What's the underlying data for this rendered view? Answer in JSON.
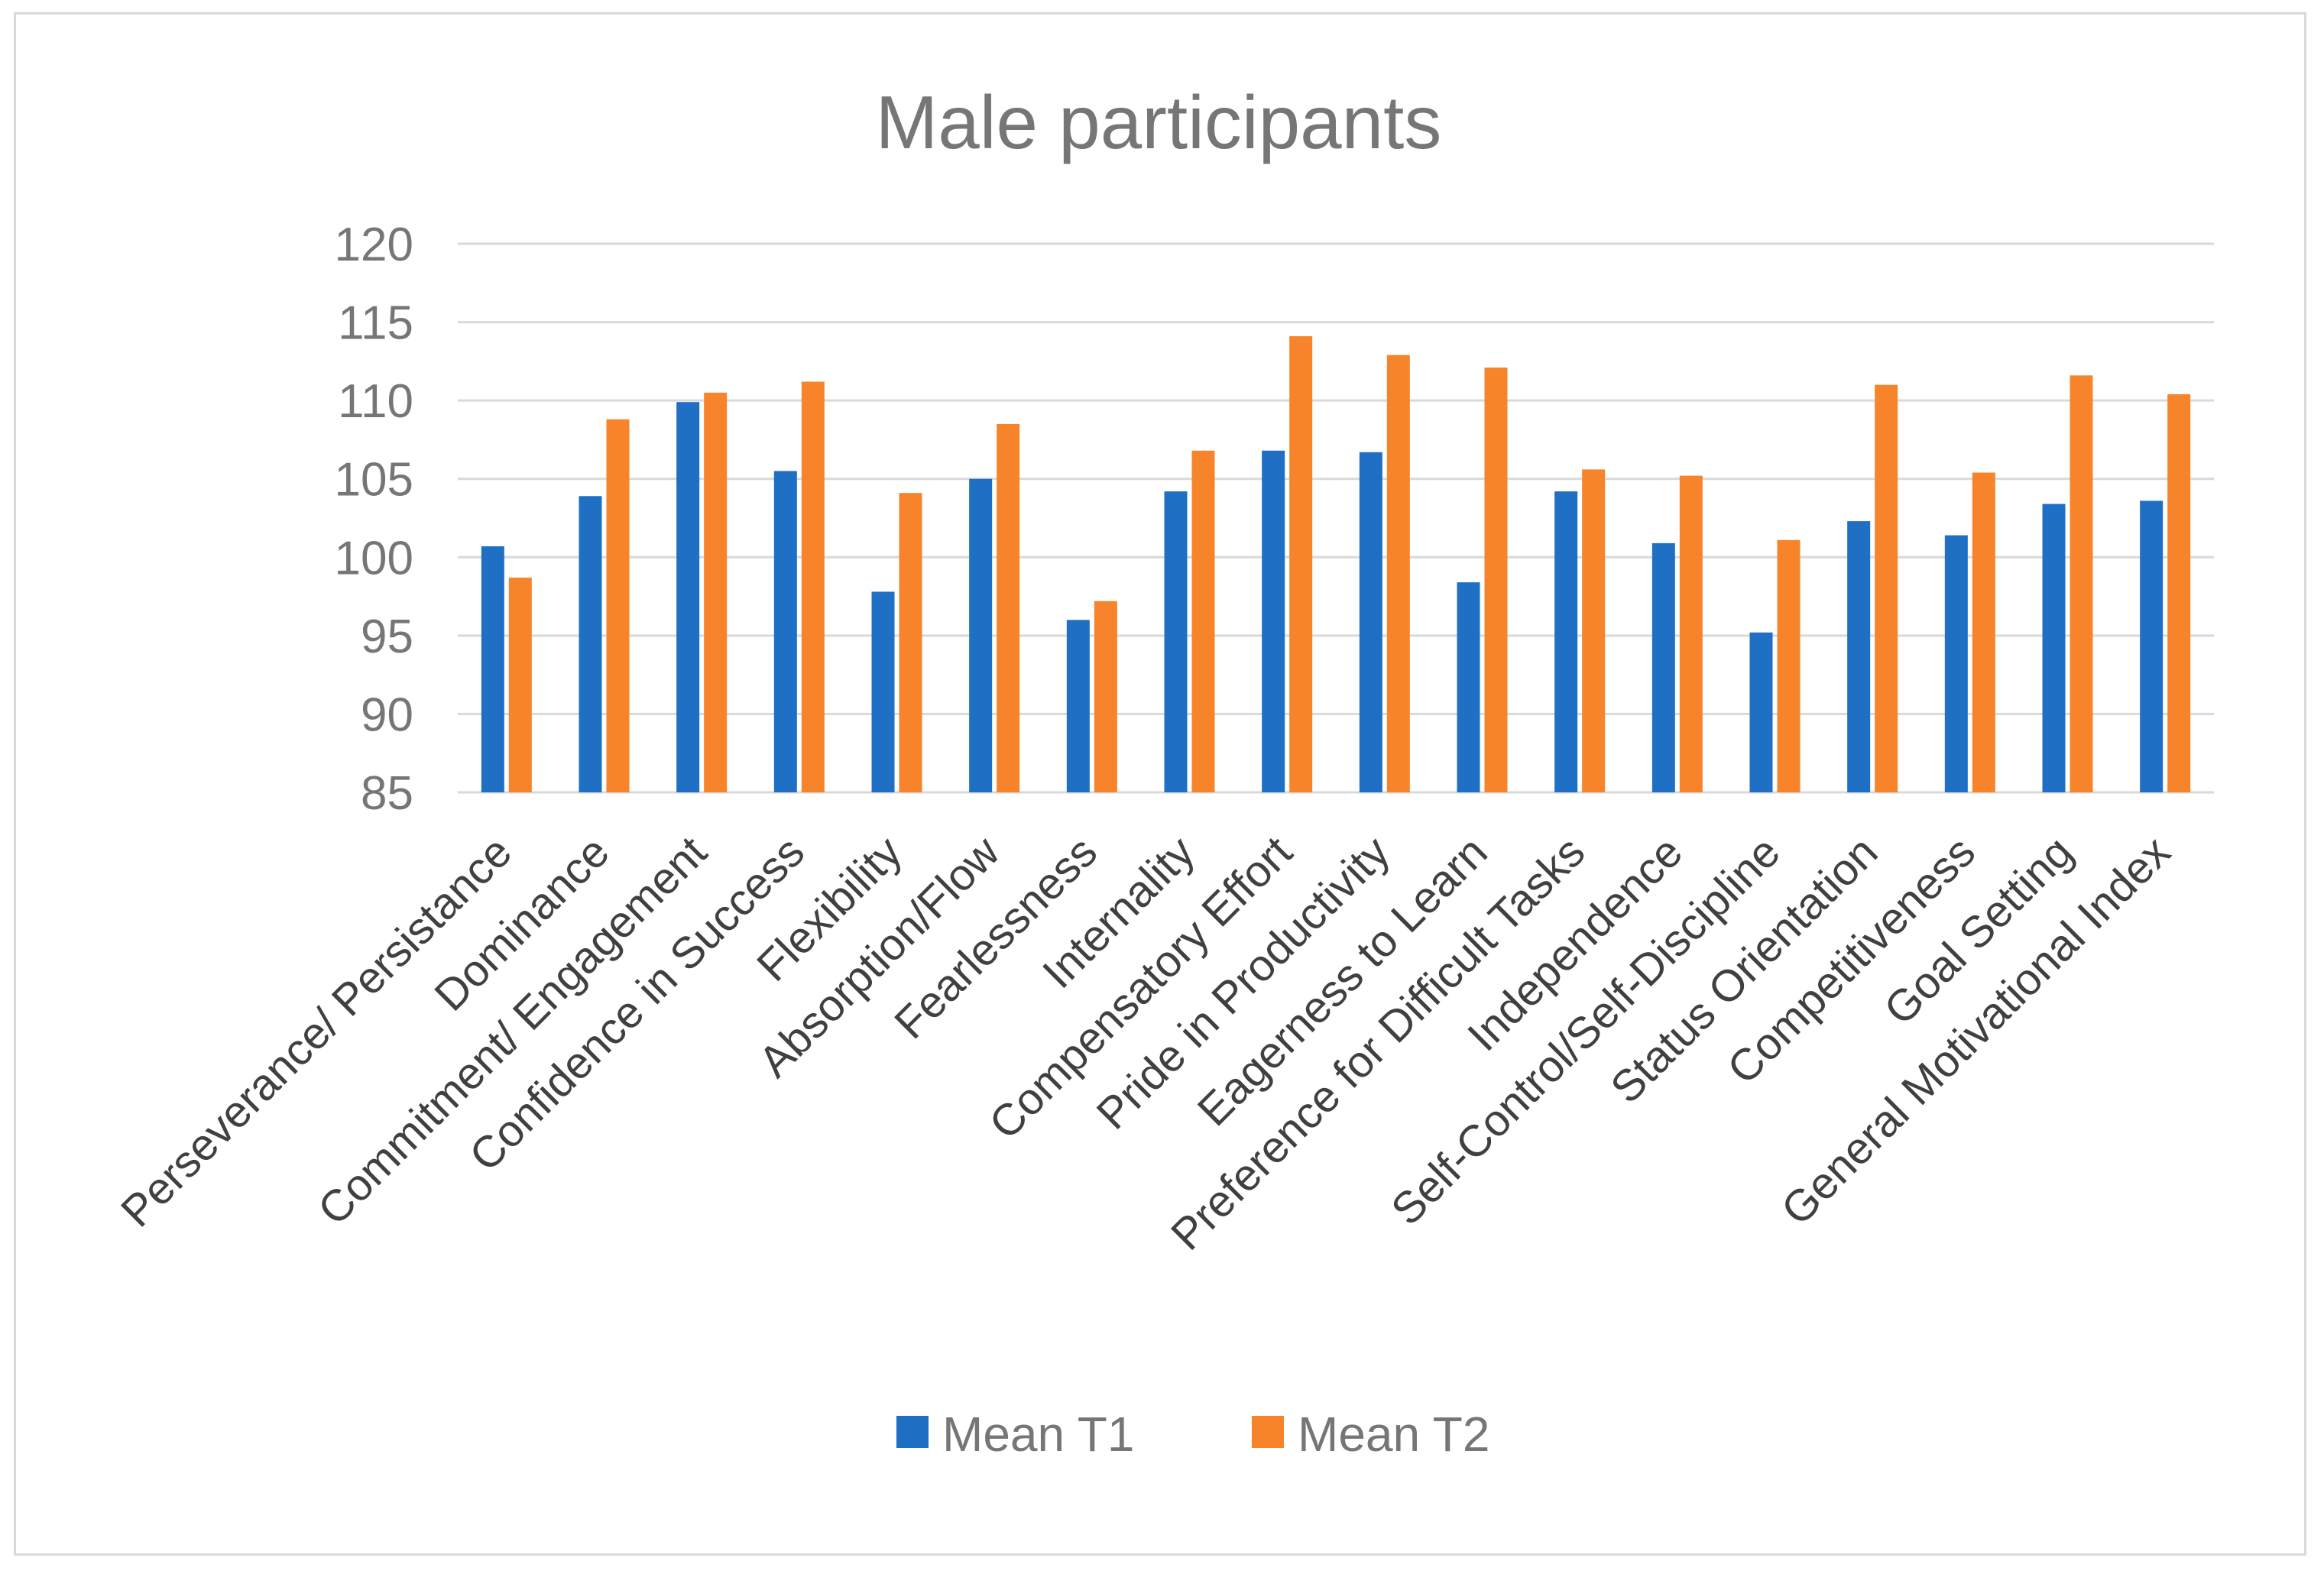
{
  "chart_data": {
    "type": "bar",
    "title": "Male participants",
    "xlabel": "",
    "ylabel": "",
    "ylim": [
      85,
      120
    ],
    "yticks": [
      85,
      90,
      95,
      100,
      105,
      110,
      115,
      120
    ],
    "grid": true,
    "legend_position": "bottom",
    "categories": [
      "Perseverance/ Persistance",
      "Dominance",
      "Commitment/ Engagement",
      "Confidence in Success",
      "Flexibility",
      "Absorption/Flow",
      "Fearlessness",
      "Internality",
      "Compensatory Effort",
      "Pride in Productivity",
      "Eagerness to Learn",
      "Preference for Difficult Tasks",
      "Independence",
      "Self-Control/Self-Discipline",
      "Status Orientation",
      "Competitiveness",
      "Goal Setting",
      "General Motivational Index"
    ],
    "series": [
      {
        "name": "Mean T1",
        "color": "#1f6fc5",
        "values": [
          100.7,
          103.9,
          109.9,
          105.5,
          97.8,
          105.0,
          96.0,
          104.2,
          106.8,
          106.7,
          98.4,
          104.2,
          100.9,
          95.2,
          102.3,
          101.4,
          103.4,
          103.6
        ]
      },
      {
        "name": "Mean T2",
        "color": "#f7842a",
        "values": [
          98.7,
          108.8,
          110.5,
          111.2,
          104.1,
          108.5,
          97.2,
          106.8,
          114.1,
          112.9,
          112.1,
          105.6,
          105.2,
          101.1,
          111.0,
          105.4,
          111.6,
          110.4
        ]
      }
    ]
  }
}
